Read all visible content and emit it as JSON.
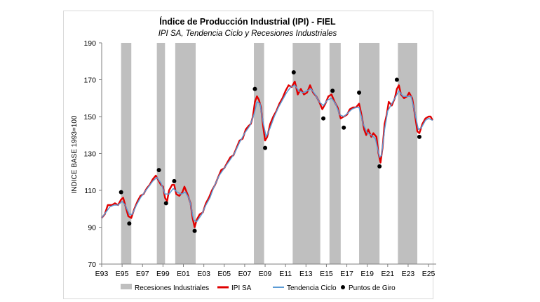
{
  "chart_data": {
    "type": "line",
    "title": "Índice de Producción Industrial (IPI) - FIEL",
    "subtitle": "IPI SA, Tendencia Ciclo y Recesiones Industriales",
    "ylabel": "INDICE BASE 1993=100",
    "xlabel": "",
    "ylim": [
      70,
      190
    ],
    "yticks": [
      70,
      90,
      110,
      130,
      150,
      170,
      190
    ],
    "xlim": [
      1993.0,
      2025.75
    ],
    "xticks": [
      {
        "x": 1993,
        "label": "E93"
      },
      {
        "x": 1995,
        "label": "E95"
      },
      {
        "x": 1997,
        "label": "E97"
      },
      {
        "x": 1999,
        "label": "E99"
      },
      {
        "x": 2001,
        "label": "E01"
      },
      {
        "x": 2003,
        "label": "E03"
      },
      {
        "x": 2005,
        "label": "E05"
      },
      {
        "x": 2007,
        "label": "E07"
      },
      {
        "x": 2009,
        "label": "E09"
      },
      {
        "x": 2011,
        "label": "E11"
      },
      {
        "x": 2013,
        "label": "E13"
      },
      {
        "x": 2015,
        "label": "E15"
      },
      {
        "x": 2017,
        "label": "E17"
      },
      {
        "x": 2019,
        "label": "E19"
      },
      {
        "x": 2021,
        "label": "E21"
      },
      {
        "x": 2023,
        "label": "E23"
      },
      {
        "x": 2025,
        "label": "E25"
      }
    ],
    "grid": false,
    "legend_position": "bottom",
    "recessions": [
      [
        1994.9,
        1995.9
      ],
      [
        1998.4,
        1999.2
      ],
      [
        2000.2,
        2002.2
      ],
      [
        2007.9,
        2008.9
      ],
      [
        2011.7,
        2014.4
      ],
      [
        2015.3,
        2016.4
      ],
      [
        2018.2,
        2020.2
      ],
      [
        2022.0,
        2023.9
      ]
    ],
    "series": [
      {
        "name": "IPI SA",
        "color": "#e00000",
        "points": [
          [
            1993.0,
            95
          ],
          [
            1993.3,
            97
          ],
          [
            1993.6,
            102
          ],
          [
            1994.0,
            102
          ],
          [
            1994.3,
            103
          ],
          [
            1994.6,
            102
          ],
          [
            1994.9,
            105
          ],
          [
            1995.1,
            106
          ],
          [
            1995.4,
            100
          ],
          [
            1995.6,
            96
          ],
          [
            1995.9,
            95
          ],
          [
            1996.2,
            100
          ],
          [
            1996.5,
            104
          ],
          [
            1996.8,
            107
          ],
          [
            1997.1,
            108
          ],
          [
            1997.4,
            111
          ],
          [
            1997.7,
            113
          ],
          [
            1998.0,
            116
          ],
          [
            1998.3,
            118
          ],
          [
            1998.5,
            116
          ],
          [
            1998.8,
            113
          ],
          [
            1999.0,
            112
          ],
          [
            1999.2,
            106
          ],
          [
            1999.4,
            104
          ],
          [
            1999.6,
            110
          ],
          [
            1999.9,
            113
          ],
          [
            2000.1,
            113
          ],
          [
            2000.3,
            108
          ],
          [
            2000.6,
            107
          ],
          [
            2000.9,
            109
          ],
          [
            2001.1,
            112
          ],
          [
            2001.4,
            108
          ],
          [
            2001.7,
            103
          ],
          [
            2001.9,
            95
          ],
          [
            2002.1,
            90
          ],
          [
            2002.3,
            94
          ],
          [
            2002.6,
            97
          ],
          [
            2002.9,
            98
          ],
          [
            2003.2,
            103
          ],
          [
            2003.5,
            106
          ],
          [
            2003.8,
            110
          ],
          [
            2004.1,
            113
          ],
          [
            2004.4,
            117
          ],
          [
            2004.7,
            121
          ],
          [
            2005.0,
            122
          ],
          [
            2005.3,
            125
          ],
          [
            2005.6,
            128
          ],
          [
            2005.9,
            129
          ],
          [
            2006.2,
            133
          ],
          [
            2006.5,
            137
          ],
          [
            2006.8,
            138
          ],
          [
            2007.1,
            143
          ],
          [
            2007.4,
            145
          ],
          [
            2007.6,
            146
          ],
          [
            2007.8,
            150
          ],
          [
            2008.0,
            158
          ],
          [
            2008.2,
            161
          ],
          [
            2008.4,
            159
          ],
          [
            2008.6,
            155
          ],
          [
            2008.8,
            145
          ],
          [
            2009.0,
            137
          ],
          [
            2009.2,
            139
          ],
          [
            2009.5,
            146
          ],
          [
            2009.8,
            150
          ],
          [
            2010.1,
            153
          ],
          [
            2010.4,
            157
          ],
          [
            2010.7,
            160
          ],
          [
            2011.0,
            164
          ],
          [
            2011.3,
            167
          ],
          [
            2011.6,
            166
          ],
          [
            2011.9,
            169
          ],
          [
            2012.0,
            167
          ],
          [
            2012.2,
            162
          ],
          [
            2012.5,
            165
          ],
          [
            2012.8,
            162
          ],
          [
            2013.1,
            163
          ],
          [
            2013.4,
            167
          ],
          [
            2013.7,
            163
          ],
          [
            2014.0,
            161
          ],
          [
            2014.3,
            158
          ],
          [
            2014.6,
            154
          ],
          [
            2014.9,
            157
          ],
          [
            2015.2,
            161
          ],
          [
            2015.5,
            162
          ],
          [
            2015.8,
            158
          ],
          [
            2016.1,
            155
          ],
          [
            2016.4,
            149
          ],
          [
            2016.7,
            150
          ],
          [
            2017.0,
            151
          ],
          [
            2017.3,
            154
          ],
          [
            2017.6,
            155
          ],
          [
            2017.9,
            155
          ],
          [
            2018.2,
            157
          ],
          [
            2018.4,
            152
          ],
          [
            2018.7,
            143
          ],
          [
            2018.9,
            140
          ],
          [
            2019.1,
            143
          ],
          [
            2019.4,
            139
          ],
          [
            2019.6,
            141
          ],
          [
            2019.9,
            139
          ],
          [
            2020.1,
            130
          ],
          [
            2020.3,
            125
          ],
          [
            2020.5,
            133
          ],
          [
            2020.7,
            146
          ],
          [
            2020.9,
            151
          ],
          [
            2021.1,
            158
          ],
          [
            2021.4,
            156
          ],
          [
            2021.7,
            160
          ],
          [
            2021.9,
            165
          ],
          [
            2022.1,
            167
          ],
          [
            2022.3,
            162
          ],
          [
            2022.6,
            160
          ],
          [
            2022.9,
            161
          ],
          [
            2023.1,
            163
          ],
          [
            2023.4,
            160
          ],
          [
            2023.7,
            150
          ],
          [
            2023.9,
            142
          ],
          [
            2024.1,
            141
          ],
          [
            2024.4,
            146
          ],
          [
            2024.7,
            149
          ],
          [
            2025.0,
            150
          ],
          [
            2025.2,
            150
          ],
          [
            2025.4,
            148
          ]
        ]
      },
      {
        "name": "Tendencia Ciclo",
        "color": "#5b9bd5",
        "points": [
          [
            1993.0,
            95
          ],
          [
            1993.4,
            98
          ],
          [
            1993.8,
            101
          ],
          [
            1994.2,
            102
          ],
          [
            1994.6,
            102
          ],
          [
            1995.0,
            104
          ],
          [
            1995.3,
            102
          ],
          [
            1995.7,
            97
          ],
          [
            1996.0,
            97
          ],
          [
            1996.4,
            102
          ],
          [
            1996.8,
            106
          ],
          [
            1997.2,
            109
          ],
          [
            1997.6,
            112
          ],
          [
            1998.0,
            115
          ],
          [
            1998.4,
            117
          ],
          [
            1998.8,
            114
          ],
          [
            1999.2,
            108
          ],
          [
            1999.6,
            108
          ],
          [
            2000.0,
            111
          ],
          [
            2000.4,
            109
          ],
          [
            2000.8,
            108
          ],
          [
            2001.2,
            109
          ],
          [
            2001.6,
            105
          ],
          [
            2002.0,
            94
          ],
          [
            2002.3,
            93
          ],
          [
            2002.8,
            97
          ],
          [
            2003.2,
            102
          ],
          [
            2003.6,
            106
          ],
          [
            2004.0,
            112
          ],
          [
            2004.5,
            118
          ],
          [
            2005.0,
            122
          ],
          [
            2005.5,
            126
          ],
          [
            2006.0,
            130
          ],
          [
            2006.5,
            136
          ],
          [
            2007.0,
            141
          ],
          [
            2007.5,
            145
          ],
          [
            2007.9,
            151
          ],
          [
            2008.2,
            158
          ],
          [
            2008.5,
            157
          ],
          [
            2008.8,
            147
          ],
          [
            2009.1,
            139
          ],
          [
            2009.5,
            144
          ],
          [
            2009.9,
            150
          ],
          [
            2010.3,
            155
          ],
          [
            2010.7,
            159
          ],
          [
            2011.1,
            163
          ],
          [
            2011.5,
            166
          ],
          [
            2011.9,
            167
          ],
          [
            2012.3,
            164
          ],
          [
            2012.7,
            163
          ],
          [
            2013.1,
            164
          ],
          [
            2013.5,
            165
          ],
          [
            2013.9,
            162
          ],
          [
            2014.3,
            158
          ],
          [
            2014.7,
            156
          ],
          [
            2015.1,
            159
          ],
          [
            2015.5,
            160
          ],
          [
            2015.9,
            157
          ],
          [
            2016.3,
            151
          ],
          [
            2016.7,
            150
          ],
          [
            2017.1,
            152
          ],
          [
            2017.5,
            154
          ],
          [
            2017.9,
            155
          ],
          [
            2018.2,
            155
          ],
          [
            2018.6,
            146
          ],
          [
            2019.0,
            141
          ],
          [
            2019.4,
            140
          ],
          [
            2019.8,
            138
          ],
          [
            2020.2,
            128
          ],
          [
            2020.4,
            129
          ],
          [
            2020.7,
            143
          ],
          [
            2021.0,
            153
          ],
          [
            2021.4,
            157
          ],
          [
            2021.8,
            161
          ],
          [
            2022.1,
            164
          ],
          [
            2022.5,
            161
          ],
          [
            2022.9,
            161
          ],
          [
            2023.3,
            161
          ],
          [
            2023.7,
            151
          ],
          [
            2024.0,
            143
          ],
          [
            2024.3,
            144
          ],
          [
            2024.7,
            148
          ],
          [
            2025.0,
            149
          ],
          [
            2025.4,
            148
          ]
        ]
      },
      {
        "name": "Puntos de Giro",
        "color": "#000000",
        "points": [
          [
            1994.9,
            109
          ],
          [
            1995.7,
            92
          ],
          [
            1998.6,
            121
          ],
          [
            1999.3,
            103
          ],
          [
            2000.1,
            115
          ],
          [
            2002.1,
            88
          ],
          [
            2008.0,
            165
          ],
          [
            2009.0,
            133
          ],
          [
            2011.8,
            174
          ],
          [
            2014.7,
            149
          ],
          [
            2015.6,
            164
          ],
          [
            2016.7,
            144
          ],
          [
            2018.2,
            163
          ],
          [
            2020.2,
            123
          ],
          [
            2021.9,
            170
          ],
          [
            2024.1,
            139
          ]
        ]
      }
    ],
    "legend": [
      {
        "label": "Recesiones Industriales",
        "kind": "bar",
        "color": "#bfbfbf"
      },
      {
        "label": "IPI SA",
        "kind": "line",
        "color": "#e00000"
      },
      {
        "label": "Tendencia Ciclo",
        "kind": "line",
        "color": "#5b9bd5"
      },
      {
        "label": "Puntos de Giro",
        "kind": "dot",
        "color": "#000000"
      }
    ]
  }
}
